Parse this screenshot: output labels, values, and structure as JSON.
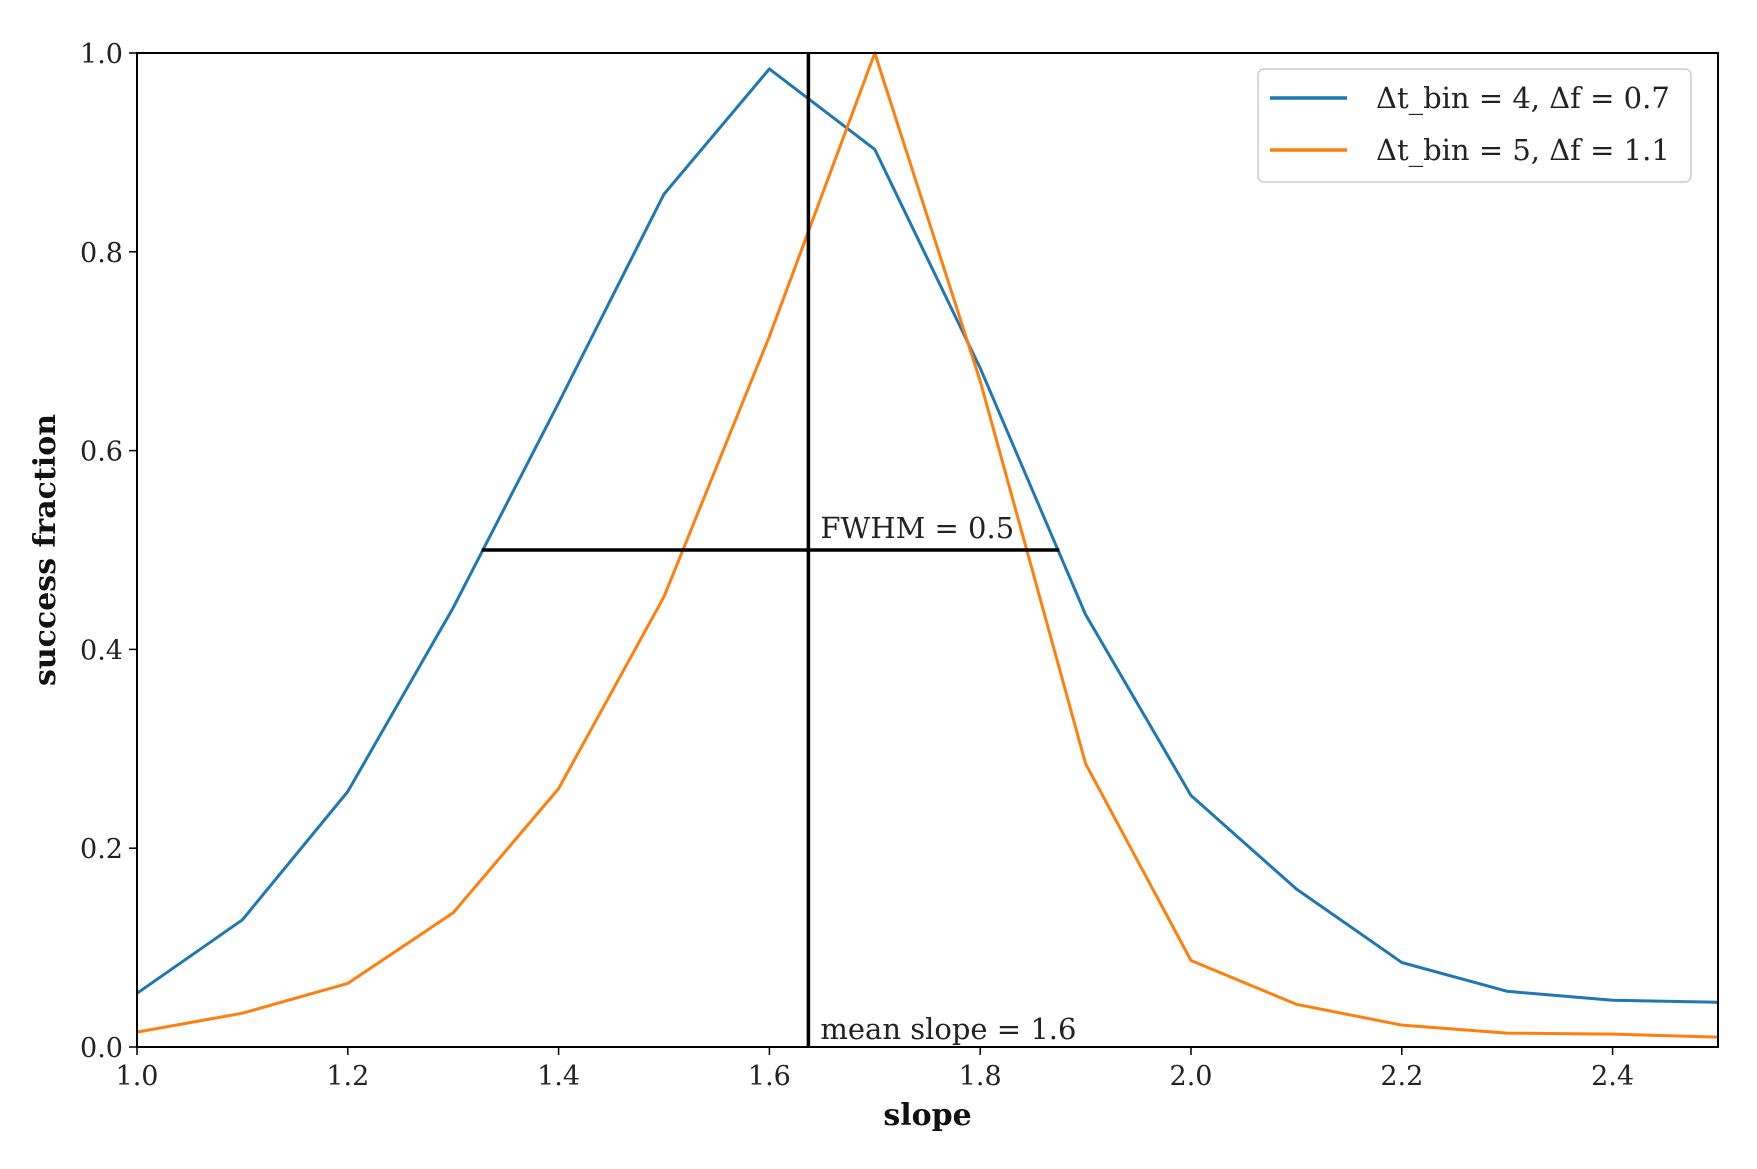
{
  "chart_data": {
    "type": "line",
    "xlabel": "slope",
    "ylabel": "success fraction",
    "xlim": [
      1.0,
      2.5
    ],
    "ylim": [
      0.0,
      1.0
    ],
    "x_ticks": [
      1.0,
      1.2,
      1.4,
      1.6,
      1.8,
      2.0,
      2.2,
      2.4
    ],
    "x_tick_labels": [
      "1.0",
      "1.2",
      "1.4",
      "1.6",
      "1.8",
      "2.0",
      "2.2",
      "2.4"
    ],
    "y_ticks": [
      0.0,
      0.2,
      0.4,
      0.6,
      0.8,
      1.0
    ],
    "y_tick_labels": [
      "0.0",
      "0.2",
      "0.4",
      "0.6",
      "0.8",
      "1.0"
    ],
    "grid": false,
    "legend_position": "top-right",
    "x": [
      1.0,
      1.1,
      1.2,
      1.3,
      1.4,
      1.5,
      1.6,
      1.7,
      1.8,
      1.9,
      2.0,
      2.1,
      2.2,
      2.3,
      2.4,
      2.5
    ],
    "series": [
      {
        "name": "Δt_bin = 4, Δf = 0.7",
        "color": "#1f77b4",
        "values": [
          0.054,
          0.128,
          0.257,
          0.442,
          0.648,
          0.858,
          0.984,
          0.903,
          0.683,
          0.435,
          0.253,
          0.159,
          0.085,
          0.056,
          0.047,
          0.045
        ]
      },
      {
        "name": "Δt_bin = 5, Δf = 1.1",
        "color": "#ff7f0e",
        "values": [
          0.015,
          0.034,
          0.064,
          0.135,
          0.26,
          0.453,
          0.715,
          1.0,
          0.67,
          0.285,
          0.087,
          0.043,
          0.022,
          0.014,
          0.013,
          0.01
        ]
      }
    ],
    "vertical_line": {
      "x": 1.637,
      "label": "mean slope = 1.6"
    },
    "fwhm_line": {
      "x_start": 1.327,
      "x_end": 1.875,
      "y": 0.5,
      "label": "FWHM = 0.5"
    }
  }
}
